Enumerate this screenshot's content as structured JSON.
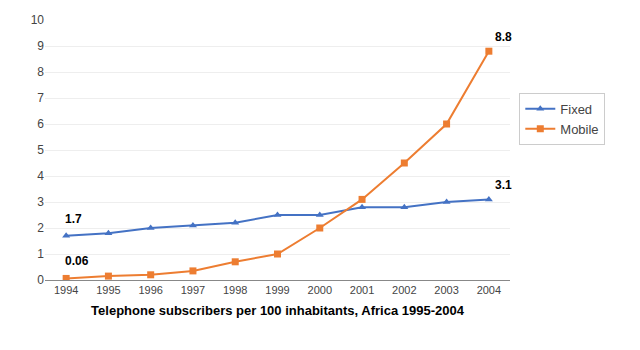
{
  "chart_data": {
    "type": "line",
    "xlabel": "Telephone subscribers per 100 inhabitants, Africa 1995-2004",
    "x": [
      1994,
      1995,
      1996,
      1997,
      1998,
      1999,
      2000,
      2001,
      2002,
      2003,
      2004
    ],
    "series": [
      {
        "name": "Fixed",
        "color": "#4472C4",
        "marker": "triangle-up",
        "line_style": "solid",
        "values": [
          1.7,
          1.8,
          2.0,
          2.1,
          2.2,
          2.5,
          2.5,
          2.8,
          2.8,
          3.0,
          3.1
        ]
      },
      {
        "name": "Mobile",
        "color": "#ED7D31",
        "marker": "square",
        "line_style": "solid",
        "values": [
          0.06,
          0.15,
          0.2,
          0.35,
          0.7,
          1.0,
          2.0,
          3.1,
          4.5,
          6.0,
          8.8
        ]
      }
    ],
    "xlim": [
      1993.5,
      2004.5
    ],
    "xticks": [
      1994,
      1995,
      1996,
      1997,
      1998,
      1999,
      2000,
      2001,
      2002,
      2003,
      2004
    ],
    "ylim": [
      0,
      10
    ],
    "yticks": [
      0,
      1,
      2,
      3,
      4,
      5,
      6,
      7,
      8,
      9,
      10
    ],
    "grid": true,
    "legend": "right",
    "annotations": [
      {
        "text": "1.7",
        "x": 1994,
        "y": 1.7
      },
      {
        "text": "0.06",
        "x": 1994,
        "y": 0.06
      },
      {
        "text": "3.1",
        "x": 2004,
        "y": 3.1
      },
      {
        "text": "8.8",
        "x": 2004,
        "y": 8.8
      }
    ]
  }
}
